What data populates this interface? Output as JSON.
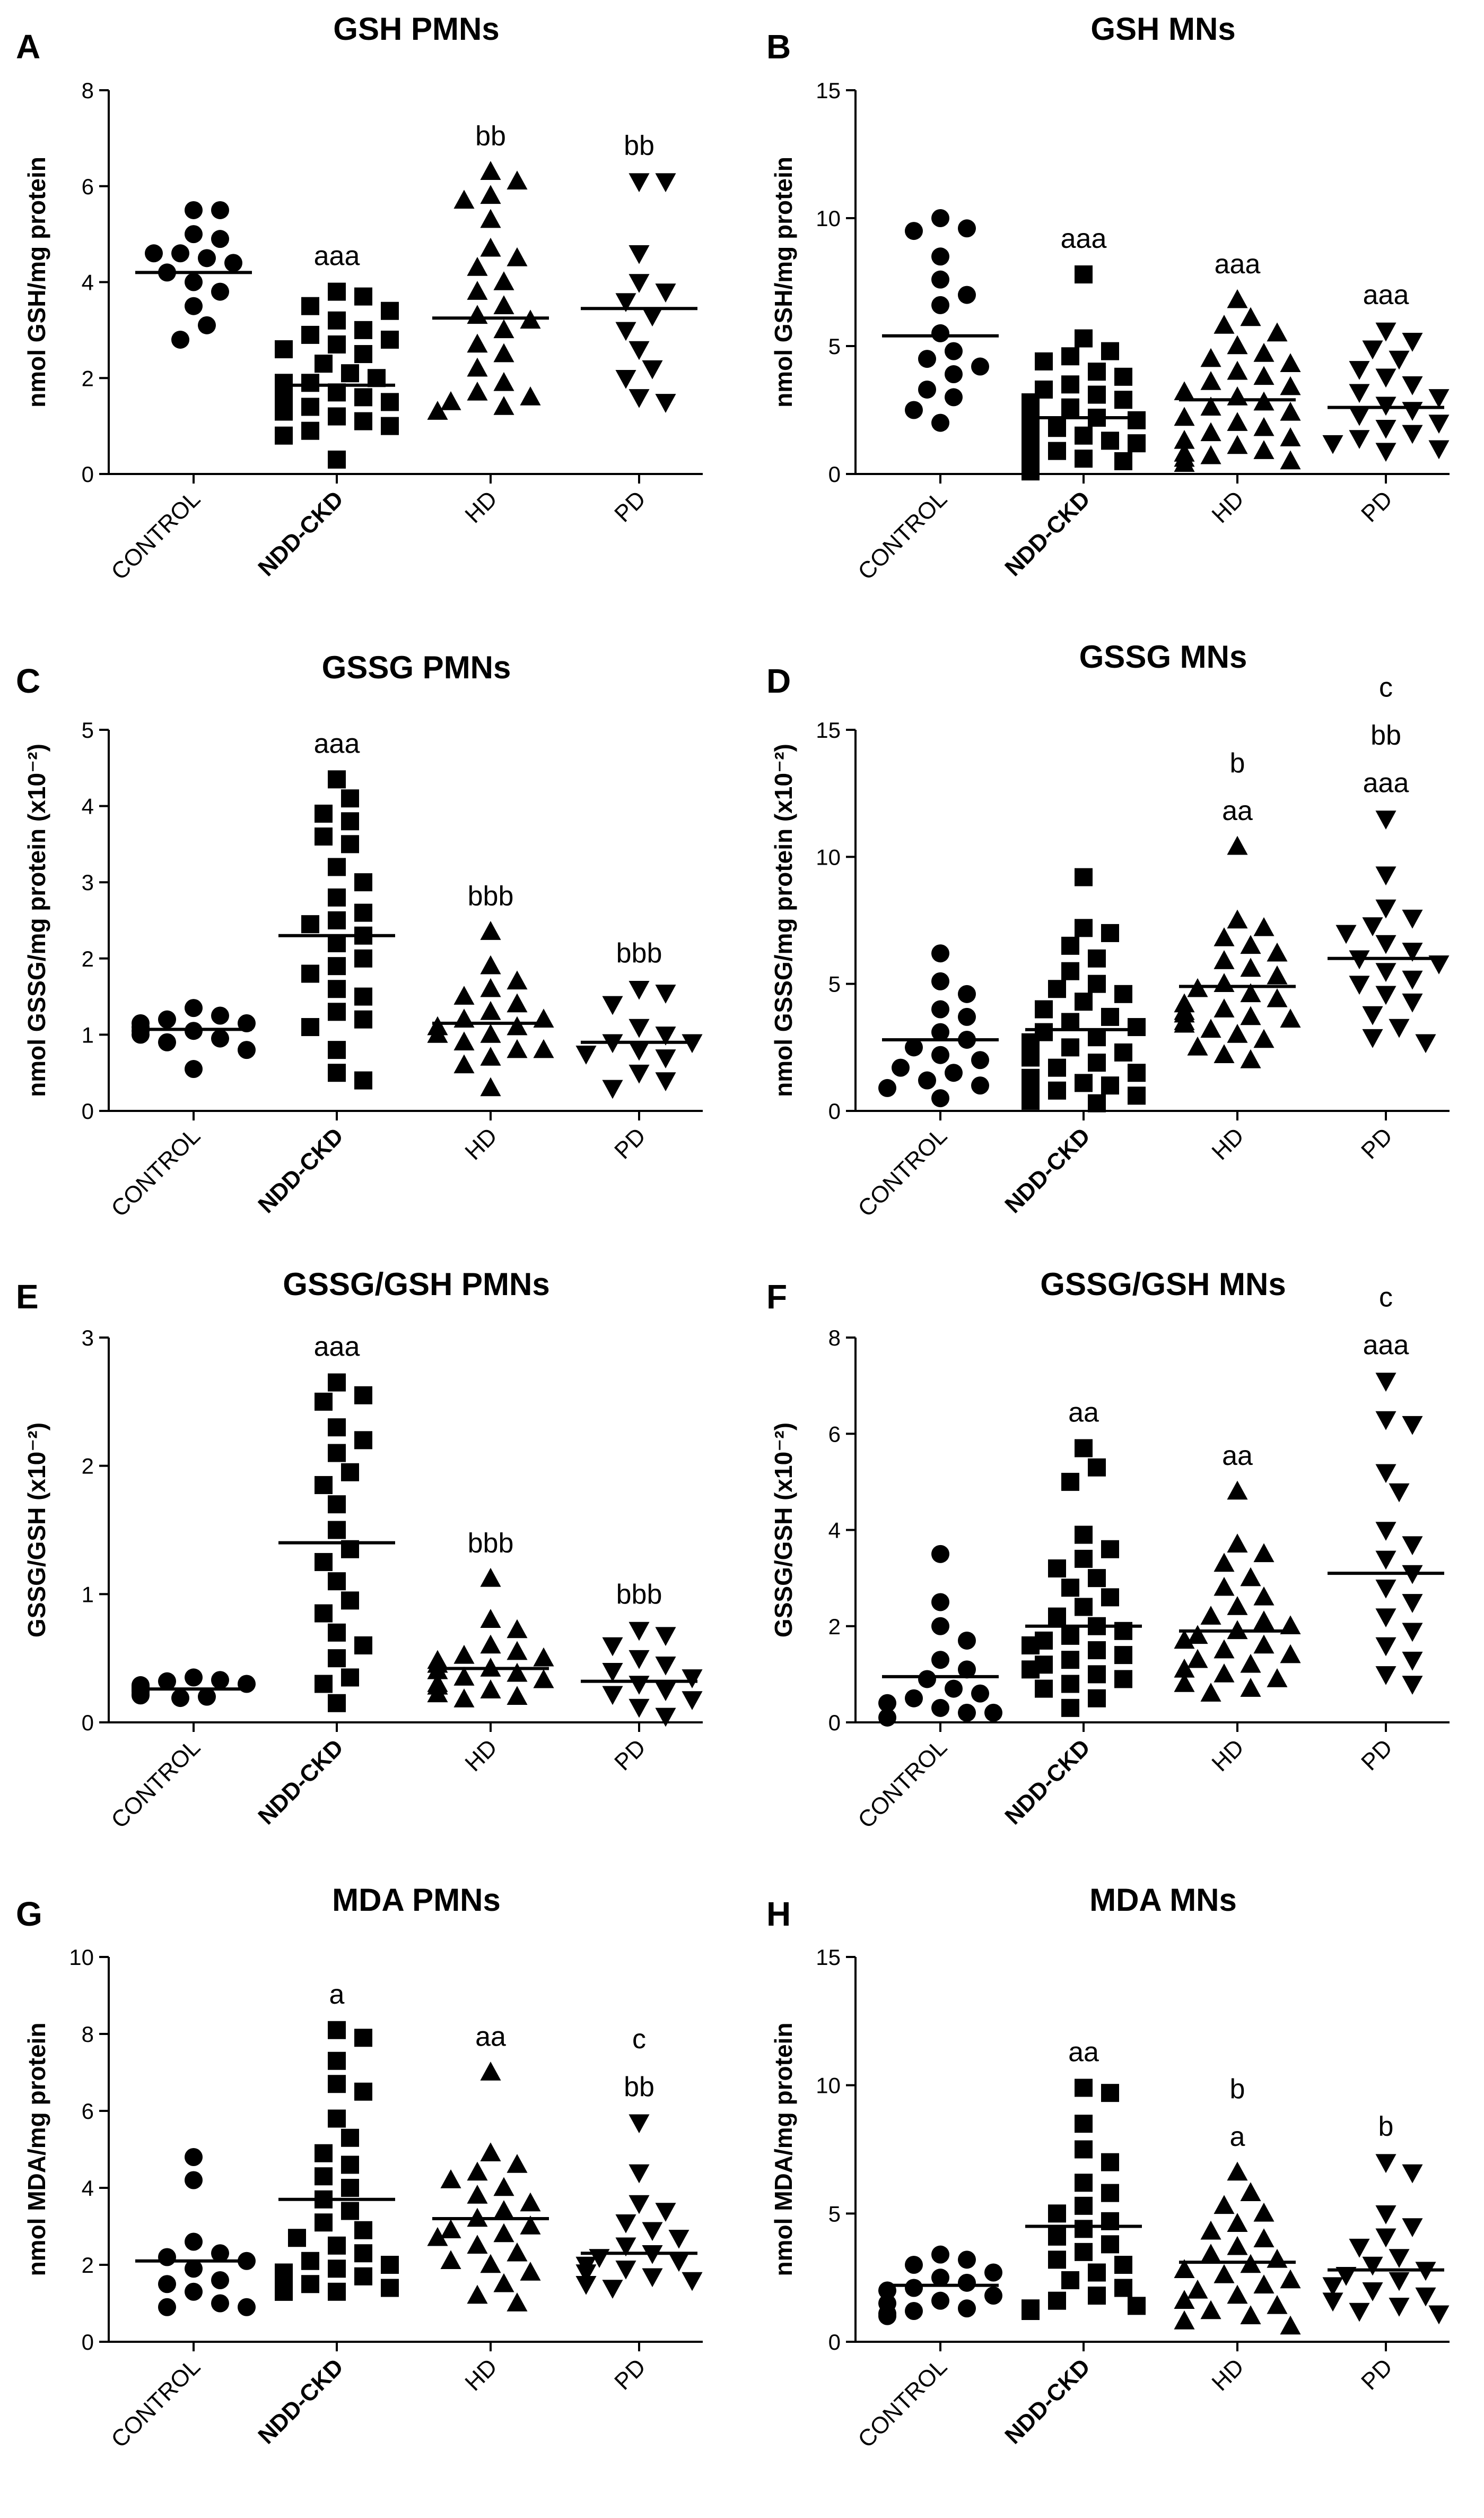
{
  "chart_data": [
    {
      "type": "scatter",
      "panel": "A",
      "title": "GSH PMNs",
      "ylabel": "nmol GSH/mg protein",
      "ylim": [
        0,
        8
      ],
      "yticks": [
        0,
        2,
        4,
        6,
        8
      ],
      "categories": [
        "CONTROL",
        "NDD-CKD",
        "HD",
        "PD"
      ],
      "markers": [
        "circle",
        "square",
        "triangle-up",
        "triangle-down"
      ],
      "series": [
        {
          "values": [
            5.5,
            5.5,
            5.0,
            4.9,
            4.6,
            4.6,
            4.5,
            4.4,
            4.2,
            4.0,
            3.8,
            3.5,
            3.1,
            2.8
          ],
          "mean": 4.2
        },
        {
          "values": [
            3.8,
            3.7,
            3.5,
            3.4,
            3.2,
            3.0,
            2.9,
            2.8,
            2.7,
            2.6,
            2.5,
            2.3,
            2.1,
            2.0,
            1.9,
            1.9,
            1.8,
            1.8,
            1.7,
            1.6,
            1.5,
            1.5,
            1.4,
            1.3,
            1.2,
            1.1,
            1.0,
            0.9,
            0.8,
            0.3
          ],
          "mean": 1.85
        },
        {
          "values": [
            6.3,
            6.1,
            5.8,
            5.7,
            5.3,
            4.7,
            4.5,
            4.3,
            4.0,
            3.8,
            3.5,
            3.3,
            3.2,
            3.0,
            2.7,
            2.5,
            2.2,
            1.9,
            1.7,
            1.6,
            1.5,
            1.4,
            1.3
          ],
          "mean": 3.25
        },
        {
          "values": [
            6.1,
            6.1,
            4.6,
            4.0,
            3.8,
            3.6,
            3.3,
            3.0,
            2.6,
            2.2,
            2.0,
            1.6,
            1.5
          ],
          "mean": 3.45
        }
      ],
      "annotations": [
        [],
        [
          "aaa"
        ],
        [
          "bb"
        ],
        [
          "bb"
        ]
      ]
    },
    {
      "type": "scatter",
      "panel": "B",
      "title": "GSH MNs",
      "ylabel": "nmol GSH/mg protein",
      "ylim": [
        0,
        15
      ],
      "yticks": [
        0,
        5,
        10,
        15
      ],
      "categories": [
        "CONTROL",
        "NDD-CKD",
        "HD",
        "PD"
      ],
      "markers": [
        "circle",
        "square",
        "triangle-up",
        "triangle-down"
      ],
      "series": [
        {
          "values": [
            10.0,
            9.6,
            9.5,
            8.5,
            7.6,
            7.0,
            6.6,
            5.5,
            4.8,
            4.5,
            4.2,
            3.9,
            3.3,
            3.0,
            2.5,
            2.0
          ],
          "mean": 5.4
        },
        {
          "values": [
            7.8,
            5.3,
            4.8,
            4.6,
            4.4,
            4.0,
            3.8,
            3.5,
            3.3,
            3.1,
            2.9,
            2.8,
            2.6,
            2.4,
            2.2,
            2.1,
            2.0,
            1.8,
            1.6,
            1.5,
            1.3,
            1.2,
            1.0,
            0.9,
            0.8,
            0.6,
            0.5,
            0.4,
            0.3,
            0.2,
            0.1
          ],
          "mean": 2.2
        },
        {
          "values": [
            6.8,
            6.1,
            5.8,
            5.5,
            5.0,
            4.7,
            4.5,
            4.3,
            4.0,
            3.8,
            3.6,
            3.4,
            3.2,
            3.0,
            2.8,
            2.6,
            2.4,
            2.2,
            2.0,
            1.8,
            1.6,
            1.4,
            1.3,
            1.1,
            0.9,
            0.8,
            0.7,
            0.6,
            0.5,
            0.4
          ],
          "mean": 2.9
        },
        {
          "values": [
            5.6,
            5.2,
            4.9,
            4.5,
            4.1,
            3.8,
            3.5,
            3.2,
            3.0,
            2.7,
            2.5,
            2.3,
            2.0,
            1.8,
            1.6,
            1.4,
            1.2,
            1.0,
            0.9
          ],
          "mean": 2.6
        }
      ],
      "annotations": [
        [],
        [
          "aaa"
        ],
        [
          "aaa"
        ],
        [
          "aaa"
        ]
      ]
    },
    {
      "type": "scatter",
      "panel": "C",
      "title": "GSSG PMNs",
      "ylabel": "nmol GSSG/mg protein (x10⁻²)",
      "ylim": [
        0,
        5
      ],
      "yticks": [
        0,
        1,
        2,
        3,
        4,
        5
      ],
      "categories": [
        "CONTROL",
        "NDD-CKD",
        "HD",
        "PD"
      ],
      "markers": [
        "circle",
        "square",
        "triangle-up",
        "triangle-down"
      ],
      "series": [
        {
          "values": [
            1.35,
            1.25,
            1.2,
            1.15,
            1.15,
            1.1,
            1.05,
            1.05,
            1.0,
            0.95,
            0.9,
            0.8,
            0.55
          ],
          "mean": 1.07
        },
        {
          "values": [
            4.35,
            4.1,
            3.9,
            3.8,
            3.6,
            3.5,
            3.2,
            3.0,
            2.8,
            2.6,
            2.5,
            2.45,
            2.3,
            2.2,
            2.0,
            1.9,
            1.8,
            1.6,
            1.5,
            1.3,
            1.2,
            1.1,
            0.8,
            0.5,
            0.4
          ],
          "mean": 2.3
        },
        {
          "values": [
            2.35,
            1.9,
            1.7,
            1.6,
            1.5,
            1.4,
            1.3,
            1.2,
            1.2,
            1.1,
            1.1,
            1.0,
            1.0,
            0.9,
            0.8,
            0.8,
            0.7,
            0.6,
            0.3
          ],
          "mean": 1.15
        },
        {
          "values": [
            1.6,
            1.55,
            1.4,
            1.1,
            1.0,
            0.9,
            0.9,
            0.8,
            0.75,
            0.7,
            0.5,
            0.4,
            0.3
          ],
          "mean": 0.9
        }
      ],
      "annotations": [
        [],
        [
          "aaa"
        ],
        [
          "bbb"
        ],
        [
          "bbb"
        ]
      ]
    },
    {
      "type": "scatter",
      "panel": "D",
      "title": "GSSG MNs",
      "ylabel": "nmol GSSG/mg protein (x10⁻²)",
      "ylim": [
        0,
        15
      ],
      "yticks": [
        0,
        5,
        10,
        15
      ],
      "categories": [
        "CONTROL",
        "NDD-CKD",
        "HD",
        "PD"
      ],
      "markers": [
        "circle",
        "square",
        "triangle-up",
        "triangle-down"
      ],
      "series": [
        {
          "values": [
            6.2,
            5.1,
            4.6,
            4.0,
            3.7,
            3.1,
            2.8,
            2.5,
            2.2,
            2.0,
            1.7,
            1.5,
            1.2,
            1.0,
            0.9,
            0.5
          ],
          "mean": 2.8
        },
        {
          "values": [
            9.2,
            7.2,
            7.0,
            6.5,
            6.0,
            5.5,
            5.0,
            4.8,
            4.6,
            4.3,
            4.0,
            3.7,
            3.5,
            3.3,
            3.1,
            2.9,
            2.7,
            2.5,
            2.3,
            2.1,
            1.9,
            1.7,
            1.5,
            1.3,
            1.1,
            1.0,
            0.9,
            0.8,
            0.7,
            0.6,
            0.5,
            0.4,
            0.3
          ],
          "mean": 3.2
        },
        {
          "values": [
            10.4,
            7.5,
            7.2,
            6.8,
            6.5,
            6.2,
            5.9,
            5.6,
            5.3,
            5.0,
            4.8,
            4.6,
            4.4,
            4.2,
            4.0,
            3.9,
            3.8,
            3.7,
            3.6,
            3.5,
            3.4,
            3.2,
            3.0,
            2.8,
            2.5,
            2.2,
            2.0
          ],
          "mean": 4.9
        },
        {
          "values": [
            11.5,
            9.3,
            8.0,
            7.6,
            7.3,
            7.0,
            6.6,
            6.3,
            6.0,
            5.8,
            5.5,
            5.2,
            5.0,
            4.6,
            4.3,
            3.8,
            3.3,
            2.9,
            2.7
          ],
          "mean": 6.0
        }
      ],
      "annotations": [
        [],
        [],
        [
          "b",
          "aa"
        ],
        [
          "c",
          "bb",
          "aaa"
        ]
      ]
    },
    {
      "type": "scatter",
      "panel": "E",
      "title": "GSSG/GSH PMNs",
      "ylabel": "GSSG/GSH (x10⁻²)",
      "ylim": [
        0,
        3
      ],
      "yticks": [
        0,
        1,
        2,
        3
      ],
      "categories": [
        "CONTROL",
        "NDD-CKD",
        "HD",
        "PD"
      ],
      "markers": [
        "circle",
        "square",
        "triangle-up",
        "triangle-down"
      ],
      "series": [
        {
          "values": [
            0.35,
            0.33,
            0.32,
            0.3,
            0.29,
            0.28,
            0.27,
            0.26,
            0.25,
            0.24,
            0.22,
            0.21,
            0.2,
            0.19
          ],
          "mean": 0.26
        },
        {
          "values": [
            2.65,
            2.55,
            2.5,
            2.3,
            2.2,
            2.1,
            1.95,
            1.85,
            1.7,
            1.5,
            1.35,
            1.25,
            1.1,
            0.95,
            0.85,
            0.7,
            0.6,
            0.5,
            0.35,
            0.3,
            0.15
          ],
          "mean": 1.4
        },
        {
          "values": [
            1.12,
            0.8,
            0.72,
            0.6,
            0.55,
            0.52,
            0.5,
            0.48,
            0.45,
            0.42,
            0.4,
            0.38,
            0.35,
            0.33,
            0.3,
            0.28,
            0.25,
            0.22,
            0.2,
            0.18
          ],
          "mean": 0.42
        },
        {
          "values": [
            0.72,
            0.68,
            0.6,
            0.5,
            0.45,
            0.4,
            0.35,
            0.3,
            0.25,
            0.22,
            0.18,
            0.12,
            0.05
          ],
          "mean": 0.32
        }
      ],
      "annotations": [
        [],
        [
          "aaa"
        ],
        [
          "bbb"
        ],
        [
          "bbb"
        ]
      ]
    },
    {
      "type": "scatter",
      "panel": "F",
      "title": "GSSG/GSH MNs",
      "ylabel": "GSSG/GSH (x10⁻²)",
      "ylim": [
        0,
        8
      ],
      "yticks": [
        0,
        2,
        4,
        6,
        8
      ],
      "categories": [
        "CONTROL",
        "NDD-CKD",
        "HD",
        "PD"
      ],
      "markers": [
        "circle",
        "square",
        "triangle-up",
        "triangle-down"
      ],
      "series": [
        {
          "values": [
            3.5,
            2.5,
            2.0,
            1.7,
            1.3,
            1.1,
            0.9,
            0.7,
            0.6,
            0.5,
            0.4,
            0.3,
            0.2,
            0.2,
            0.1
          ],
          "mean": 0.95
        },
        {
          "values": [
            5.7,
            5.3,
            5.0,
            3.9,
            3.6,
            3.4,
            3.2,
            3.0,
            2.8,
            2.6,
            2.4,
            2.2,
            2.0,
            1.9,
            1.8,
            1.7,
            1.6,
            1.5,
            1.4,
            1.3,
            1.2,
            1.1,
            1.0,
            0.9,
            0.8,
            0.7,
            0.5,
            0.3
          ],
          "mean": 2.0
        },
        {
          "values": [
            4.8,
            3.7,
            3.5,
            3.3,
            3.0,
            2.8,
            2.6,
            2.4,
            2.2,
            2.1,
            2.0,
            1.9,
            1.8,
            1.7,
            1.6,
            1.5,
            1.4,
            1.3,
            1.2,
            1.1,
            1.0,
            0.9,
            0.8,
            0.7,
            0.6
          ],
          "mean": 1.9
        },
        {
          "values": [
            7.1,
            6.3,
            6.2,
            5.2,
            4.8,
            4.0,
            3.7,
            3.4,
            3.1,
            2.8,
            2.5,
            2.2,
            1.9,
            1.6,
            1.3,
            1.0,
            0.8
          ],
          "mean": 3.1
        }
      ],
      "annotations": [
        [],
        [
          "aa"
        ],
        [
          "aa"
        ],
        [
          "c",
          "aaa"
        ]
      ]
    },
    {
      "type": "scatter",
      "panel": "G",
      "title": "MDA PMNs",
      "ylabel": "nmol MDA/mg protein",
      "ylim": [
        0,
        10
      ],
      "yticks": [
        0,
        2,
        4,
        6,
        8,
        10
      ],
      "categories": [
        "CONTROL",
        "NDD-CKD",
        "HD",
        "PD"
      ],
      "markers": [
        "circle",
        "square",
        "triangle-up",
        "triangle-down"
      ],
      "series": [
        {
          "values": [
            4.8,
            4.2,
            2.6,
            2.3,
            2.2,
            2.1,
            1.9,
            1.6,
            1.5,
            1.3,
            1.0,
            0.9,
            0.9
          ],
          "mean": 2.1
        },
        {
          "values": [
            8.1,
            7.9,
            7.3,
            6.7,
            6.5,
            5.8,
            5.3,
            4.9,
            4.6,
            4.3,
            4.0,
            3.7,
            3.4,
            3.1,
            2.9,
            2.7,
            2.5,
            2.3,
            2.1,
            2.0,
            1.9,
            1.8,
            1.7,
            1.6,
            1.5,
            1.4,
            1.4,
            1.3,
            1.3,
            1.3
          ],
          "mean": 3.7
        },
        {
          "values": [
            7.0,
            4.9,
            4.6,
            4.4,
            4.2,
            4.0,
            3.8,
            3.6,
            3.4,
            3.2,
            3.0,
            2.9,
            2.8,
            2.7,
            2.5,
            2.3,
            2.1,
            2.0,
            1.8,
            1.5,
            1.2,
            1.0
          ],
          "mean": 3.2
        },
        {
          "values": [
            5.7,
            4.4,
            3.6,
            3.4,
            3.1,
            2.9,
            2.7,
            2.5,
            2.3,
            2.2,
            2.1,
            2.0,
            1.9,
            1.8,
            1.7,
            1.6,
            1.5,
            1.4
          ],
          "mean": 2.3
        }
      ],
      "annotations": [
        [],
        [
          "a"
        ],
        [
          "aa"
        ],
        [
          "c",
          "bb"
        ]
      ]
    },
    {
      "type": "scatter",
      "panel": "H",
      "title": "MDA MNs",
      "ylabel": "nmol MDA/mg protein",
      "ylim": [
        0,
        15
      ],
      "yticks": [
        0,
        5,
        10,
        15
      ],
      "categories": [
        "CONTROL",
        "NDD-CKD",
        "HD",
        "PD"
      ],
      "markers": [
        "circle",
        "square",
        "triangle-up",
        "triangle-down"
      ],
      "series": [
        {
          "values": [
            3.4,
            3.2,
            3.0,
            2.7,
            2.5,
            2.3,
            2.1,
            2.0,
            1.8,
            1.6,
            1.5,
            1.3,
            1.2,
            1.1,
            1.0
          ],
          "mean": 2.2
        },
        {
          "values": [
            9.9,
            9.7,
            8.5,
            7.5,
            7.0,
            6.2,
            5.8,
            5.3,
            5.0,
            4.7,
            4.4,
            4.1,
            3.8,
            3.5,
            3.2,
            3.0,
            2.7,
            2.4,
            2.1,
            1.8,
            1.6,
            1.4,
            1.3,
            1.2
          ],
          "mean": 4.5
        },
        {
          "values": [
            6.6,
            5.8,
            5.3,
            5.0,
            4.6,
            4.3,
            4.0,
            3.7,
            3.4,
            3.2,
            3.0,
            2.8,
            2.6,
            2.4,
            2.2,
            2.0,
            1.8,
            1.6,
            1.4,
            1.2,
            1.0,
            0.8,
            0.6
          ],
          "mean": 3.1
        },
        {
          "values": [
            7.0,
            6.6,
            5.0,
            4.5,
            4.1,
            3.7,
            3.3,
            3.0,
            2.8,
            2.6,
            2.4,
            2.2,
            2.0,
            1.8,
            1.6,
            1.4,
            1.2,
            1.1
          ],
          "mean": 2.8
        }
      ],
      "annotations": [
        [],
        [
          "aa"
        ],
        [
          "b",
          "a"
        ],
        [
          "b"
        ]
      ]
    }
  ]
}
